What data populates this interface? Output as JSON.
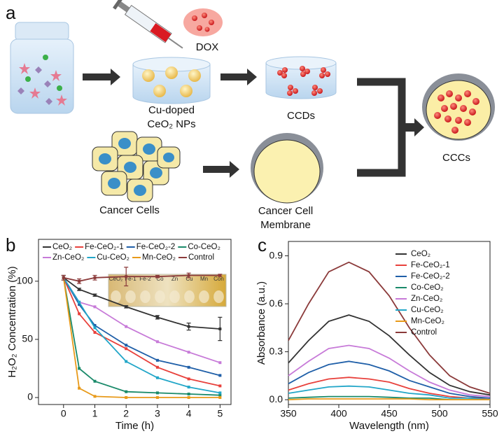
{
  "diagram": {
    "panel_label": "a",
    "labels": {
      "dox": "DOX",
      "np_line1": "Cu-doped",
      "np_line2": "CeO₂ NPs",
      "ccds": "CCDs",
      "cccs": "CCCs",
      "cancer_cells": "Cancer Cells",
      "membrane_line1": "Cancer Cell",
      "membrane_line2": "Membrane"
    }
  },
  "chart_data": [
    {
      "type": "line",
      "panel_label": "b",
      "x_label": "Time (h)",
      "y_label": "H₂O₂ Concentration (%)",
      "x": [
        0,
        0.5,
        1,
        2,
        3,
        4,
        5
      ],
      "xlim": [
        -0.8,
        5.35
      ],
      "ylim": [
        -6,
        136
      ],
      "xticks": [
        0,
        1,
        2,
        3,
        4,
        5
      ],
      "yticks": [
        0,
        50,
        100
      ],
      "markers": true,
      "legend": "top",
      "inset_labels": [
        "CeO₂",
        "Fe-1",
        "Fe-2",
        "Co",
        "Zn",
        "Cu",
        "Mn",
        "Con"
      ],
      "series": [
        {
          "name": "CeO₂",
          "color": "#333333",
          "values": [
            103,
            93,
            88,
            78,
            69,
            61,
            59
          ],
          "errors": [
            2,
            1,
            1,
            1,
            1.5,
            3,
            10
          ]
        },
        {
          "name": "Fe-CeO₂-1",
          "color": "#e8413c",
          "values": [
            103,
            72,
            56,
            42,
            26,
            16,
            10
          ]
        },
        {
          "name": "Fe-CeO₂-2",
          "color": "#1f5fa8",
          "values": [
            103,
            80,
            62,
            45,
            32,
            26,
            19
          ]
        },
        {
          "name": "Co-CeO₂",
          "color": "#1a8a6a",
          "values": [
            103,
            25,
            14,
            5,
            4,
            3,
            2
          ]
        },
        {
          "name": "Zn-CeO₂",
          "color": "#c77ad8",
          "values": [
            103,
            82,
            78,
            61,
            48,
            39,
            30
          ]
        },
        {
          "name": "Cu-CeO₂",
          "color": "#22a6c8",
          "values": [
            103,
            82,
            60,
            31,
            17,
            9,
            4
          ]
        },
        {
          "name": "Mn-CeO₂",
          "color": "#e89a1a",
          "values": [
            103,
            8,
            1,
            0,
            0,
            0,
            0
          ]
        },
        {
          "name": "Control",
          "color": "#8b3a3a",
          "values": [
            103,
            100,
            103,
            104,
            104,
            105,
            105
          ],
          "errors": [
            2,
            2,
            2,
            8,
            1,
            2,
            1
          ]
        }
      ]
    },
    {
      "type": "line",
      "panel_label": "c",
      "x_label": "Wavelength (nm)",
      "y_label": "Absorbance (a.u.)",
      "x": [
        350,
        370,
        390,
        410,
        430,
        450,
        470,
        490,
        510,
        530,
        550
      ],
      "xlim": [
        350,
        550
      ],
      "ylim": [
        -0.03,
        0.99
      ],
      "xticks": [
        350,
        400,
        450,
        500,
        550
      ],
      "yticks": [
        {
          "value": 0,
          "label": "0.0"
        },
        0.3,
        0.6,
        0.9
      ],
      "markers": false,
      "legend": "upper right",
      "series": [
        {
          "name": "CeO₂",
          "color": "#333333",
          "values": [
            0.23,
            0.37,
            0.49,
            0.53,
            0.49,
            0.4,
            0.28,
            0.17,
            0.09,
            0.05,
            0.03
          ]
        },
        {
          "name": "Fe-CeO₂-1",
          "color": "#e8413c",
          "values": [
            0.06,
            0.1,
            0.13,
            0.14,
            0.13,
            0.11,
            0.07,
            0.04,
            0.02,
            0.01,
            0.01
          ]
        },
        {
          "name": "Fe-CeO₂-2",
          "color": "#1f5fa8",
          "values": [
            0.1,
            0.17,
            0.22,
            0.24,
            0.22,
            0.18,
            0.12,
            0.08,
            0.04,
            0.02,
            0.01
          ]
        },
        {
          "name": "Co-CeO₂",
          "color": "#1a8a6a",
          "values": [
            0.01,
            0.015,
            0.02,
            0.02,
            0.02,
            0.015,
            0.01,
            0.01,
            0,
            0,
            0
          ]
        },
        {
          "name": "Zn-CeO₂",
          "color": "#c77ad8",
          "values": [
            0.15,
            0.24,
            0.32,
            0.34,
            0.32,
            0.26,
            0.18,
            0.11,
            0.06,
            0.03,
            0.02
          ]
        },
        {
          "name": "Cu-CeO₂",
          "color": "#22a6c8",
          "values": [
            0.04,
            0.06,
            0.08,
            0.085,
            0.08,
            0.06,
            0.04,
            0.03,
            0.01,
            0.01,
            0
          ]
        },
        {
          "name": "Mn-CeO₂",
          "color": "#e89a1a",
          "values": [
            0,
            0.005,
            0.005,
            0.005,
            0.005,
            0.005,
            0.005,
            0,
            0,
            0,
            0
          ]
        },
        {
          "name": "Control",
          "color": "#8b3a3a",
          "values": [
            0.37,
            0.6,
            0.8,
            0.86,
            0.8,
            0.65,
            0.45,
            0.28,
            0.15,
            0.08,
            0.04
          ]
        }
      ]
    }
  ]
}
